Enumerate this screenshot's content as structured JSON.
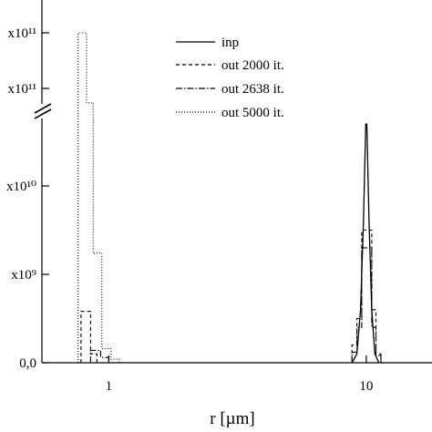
{
  "chart_data": {
    "type": "line",
    "title": "",
    "xlabel": "r  [µm]",
    "ylabel": "",
    "x_scale": "log",
    "xlim": [
      0.55,
      18
    ],
    "x_ticks": [
      {
        "value": 1,
        "label": "1"
      },
      {
        "value": 10,
        "label": "10"
      }
    ],
    "y_ticks": [
      {
        "value": 0,
        "label": "0,0"
      },
      {
        "value": 5000000000.0,
        "label": "x10⁹"
      },
      {
        "value": 10000000000.0,
        "label": "x10¹⁰"
      },
      {
        "value": 15000000000.0,
        "label": "x10¹¹"
      },
      {
        "value": 20000000000.0,
        "label": "x10¹¹"
      }
    ],
    "y_axis_break": "between top two ticks and the lower scale",
    "grid": false,
    "legend": {
      "position": "top-right",
      "entries": [
        {
          "label": "inp",
          "style": "solid"
        },
        {
          "label": "out 2000 it.",
          "style": "dashed"
        },
        {
          "label": "out 2638 it.",
          "style": "dashdot"
        },
        {
          "label": "out 5000 it.",
          "style": "dotted"
        }
      ]
    },
    "series": [
      {
        "name": "inp",
        "style": "solid",
        "points": [
          [
            8.8,
            0
          ],
          [
            9.2,
            500000000.0
          ],
          [
            9.5,
            3000000000.0
          ],
          [
            9.75,
            8000000000.0
          ],
          [
            9.95,
            13500000000.0
          ],
          [
            10.05,
            13500000000.0
          ],
          [
            10.25,
            8000000000.0
          ],
          [
            10.5,
            3000000000.0
          ],
          [
            10.8,
            500000000.0
          ],
          [
            11.2,
            0
          ]
        ]
      },
      {
        "name": "out 2000 it.",
        "style": "dashed",
        "points": [
          [
            0.78,
            0
          ],
          [
            0.78,
            2900000000.0
          ],
          [
            0.85,
            2900000000.0
          ],
          [
            0.85,
            500000000.0
          ],
          [
            0.9,
            500000000.0
          ],
          [
            0.9,
            0
          ],
          [
            8.8,
            0
          ],
          [
            8.8,
            1000000000.0
          ],
          [
            9.2,
            1000000000.0
          ],
          [
            9.2,
            2500000000.0
          ],
          [
            9.6,
            2500000000.0
          ],
          [
            9.6,
            7500000000.0
          ],
          [
            10.5,
            7500000000.0
          ],
          [
            10.5,
            3000000000.0
          ],
          [
            10.9,
            3000000000.0
          ],
          [
            10.9,
            500000000.0
          ],
          [
            11.4,
            500000000.0
          ],
          [
            11.4,
            0
          ]
        ]
      },
      {
        "name": "out 2638 it.",
        "style": "dashdot",
        "points": [
          [
            0.85,
            0
          ],
          [
            0.85,
            700000000.0
          ],
          [
            0.93,
            700000000.0
          ],
          [
            0.93,
            300000000.0
          ],
          [
            1.0,
            300000000.0
          ],
          [
            1.0,
            0
          ],
          [
            8.8,
            0
          ],
          [
            8.8,
            600000000.0
          ],
          [
            9.2,
            600000000.0
          ],
          [
            9.2,
            2000000000.0
          ],
          [
            9.6,
            2000000000.0
          ],
          [
            9.6,
            6500000000.0
          ],
          [
            10.5,
            6500000000.0
          ],
          [
            10.5,
            2000000000.0
          ],
          [
            10.9,
            2000000000.0
          ],
          [
            10.9,
            400000000.0
          ],
          [
            11.4,
            400000000.0
          ],
          [
            11.4,
            0
          ]
        ]
      },
      {
        "name": "out 5000 it.",
        "style": "dotted",
        "points": [
          [
            0.76,
            0
          ],
          [
            0.76,
            20000000000.0
          ],
          [
            0.82,
            20000000000.0
          ],
          [
            0.82,
            14700000000.0
          ],
          [
            0.87,
            14700000000.0
          ],
          [
            0.87,
            6200000000.0
          ],
          [
            0.94,
            6200000000.0
          ],
          [
            0.94,
            800000000.0
          ],
          [
            1.02,
            800000000.0
          ],
          [
            1.02,
            200000000.0
          ],
          [
            1.1,
            200000000.0
          ],
          [
            1.1,
            0
          ]
        ]
      }
    ]
  }
}
